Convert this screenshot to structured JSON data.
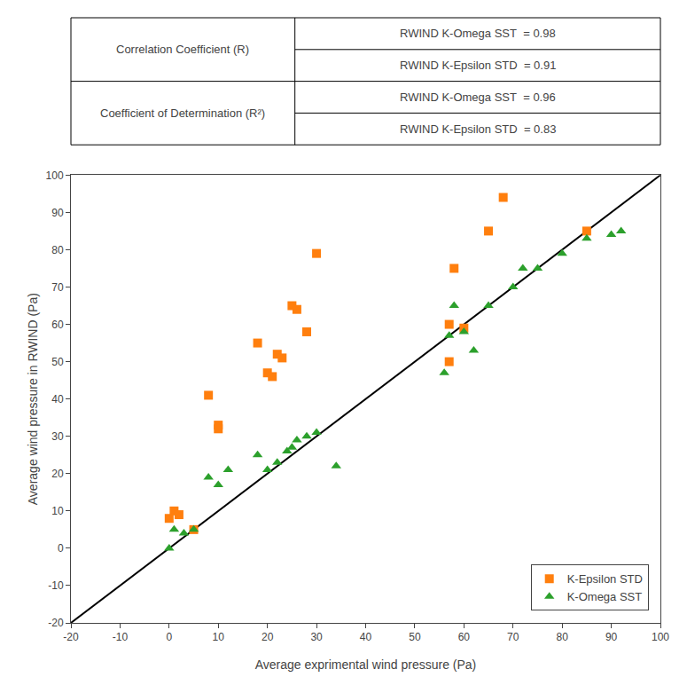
{
  "chart_data": {
    "type": "scatter",
    "xlabel": "Average exprimental wind pressure (Pa)",
    "ylabel": "Average wind pressure in RWIND (Pa)",
    "xlim": [
      -20,
      100
    ],
    "ylim": [
      -20,
      100
    ],
    "xticks": [
      -20,
      -10,
      0,
      10,
      20,
      30,
      40,
      50,
      60,
      70,
      80,
      90,
      100
    ],
    "yticks": [
      -20,
      -10,
      0,
      10,
      20,
      30,
      40,
      50,
      60,
      70,
      80,
      90,
      100
    ],
    "grid": false,
    "legend": "lower right",
    "series": [
      {
        "type": "line",
        "color": "black",
        "x": [
          -20,
          100
        ],
        "values": [
          -20,
          100
        ]
      },
      {
        "type": "scatter",
        "name": "K-Epsilon STD",
        "marker": "square",
        "x": [
          0,
          1,
          2,
          5,
          8,
          10,
          10,
          18,
          20,
          21,
          22,
          23,
          25,
          26,
          28,
          30,
          57,
          57,
          58,
          60,
          65,
          68,
          85
        ],
        "values": [
          8,
          10,
          9,
          5,
          41,
          33,
          32,
          55,
          47,
          46,
          52,
          51,
          65,
          64,
          58,
          79,
          50,
          60,
          75,
          59,
          85,
          94,
          85
        ]
      },
      {
        "type": "scatter",
        "name": "K-Omega SST",
        "marker": "triangle-up",
        "x": [
          0,
          1,
          3,
          5,
          8,
          10,
          12,
          18,
          20,
          22,
          24,
          25,
          26,
          28,
          30,
          34,
          56,
          57,
          58,
          60,
          62,
          65,
          70,
          72,
          75,
          80,
          85,
          90,
          92
        ],
        "values": [
          0,
          5,
          4,
          5,
          19,
          17,
          21,
          25,
          21,
          23,
          26,
          27,
          29,
          30,
          31,
          22,
          47,
          57,
          65,
          58,
          53,
          65,
          70,
          75,
          75,
          79,
          83,
          84,
          85
        ]
      }
    ],
    "table": [
      {
        "label": "Correlation Coefficient (R)",
        "values": [
          "RWIND K-Omega SST  = 0.98",
          "RWIND K-Epsilon STD  = 0.91"
        ]
      },
      {
        "label": "Coefficient of Determination (R²)",
        "values": [
          "RWIND K-Omega SST  = 0.96",
          "RWIND K-Epsilon STD  = 0.83"
        ]
      }
    ]
  }
}
